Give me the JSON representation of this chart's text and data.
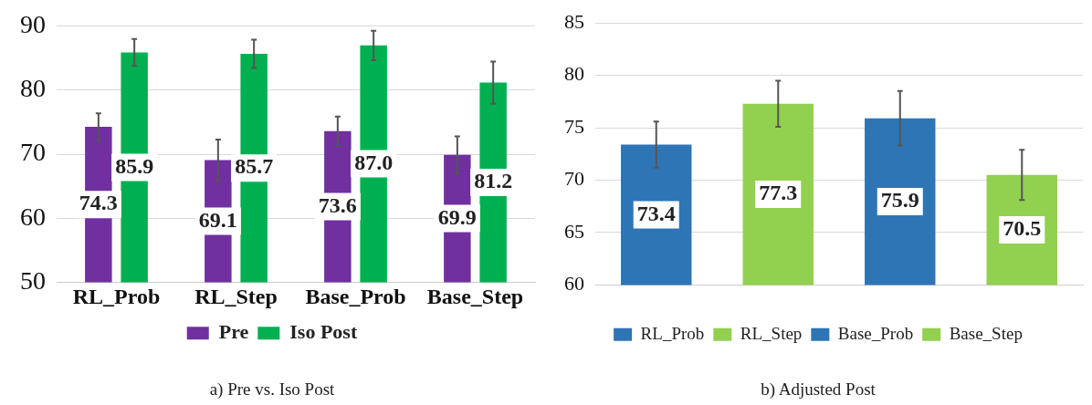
{
  "chart_data": [
    {
      "type": "bar",
      "title": "a) Pre vs. Iso Post",
      "categories": [
        "RL_Prob",
        "RL_Step",
        "Base_Prob",
        "Base_Step"
      ],
      "series": [
        {
          "name": "Pre",
          "color": "#7030a0",
          "values": [
            74.3,
            69.1,
            73.6,
            69.9
          ],
          "errors": [
            2.1,
            3.2,
            2.3,
            2.9
          ]
        },
        {
          "name": "Iso Post",
          "color": "#00b050",
          "values": [
            85.9,
            85.7,
            87.0,
            81.2
          ],
          "value_labels": [
            "85.9",
            "85.7",
            "87.0",
            "81.2"
          ],
          "errors": [
            2.1,
            2.2,
            2.3,
            3.3
          ]
        }
      ],
      "ylim": [
        50,
        90
      ],
      "yticks": [
        50,
        60,
        70,
        80,
        90
      ],
      "grid": "y",
      "legend": "bottom",
      "data_labels": true
    },
    {
      "type": "bar",
      "title": "b) Adjusted Post",
      "categories": [
        null,
        null,
        null,
        null
      ],
      "series": [
        {
          "name": "RL_Prob",
          "color": "#2e75b6",
          "values": [
            73.4,
            null,
            null,
            null
          ],
          "errors": [
            2.2,
            null,
            null,
            null
          ]
        },
        {
          "name": "RL_Step",
          "color": "#92d050",
          "values": [
            null,
            77.3,
            null,
            null
          ],
          "errors": [
            null,
            2.2,
            null,
            null
          ]
        },
        {
          "name": "Base_Prob",
          "color": "#2e75b6",
          "values": [
            null,
            null,
            75.9,
            null
          ],
          "errors": [
            null,
            null,
            2.6,
            null
          ]
        },
        {
          "name": "Base_Step",
          "color": "#92d050",
          "values": [
            null,
            null,
            null,
            70.5
          ],
          "errors": [
            null,
            null,
            null,
            2.4
          ]
        }
      ],
      "ylim": [
        60,
        85
      ],
      "yticks": [
        60,
        65,
        70,
        75,
        80,
        85
      ],
      "grid": "y",
      "legend": "bottom",
      "data_labels": true
    }
  ]
}
